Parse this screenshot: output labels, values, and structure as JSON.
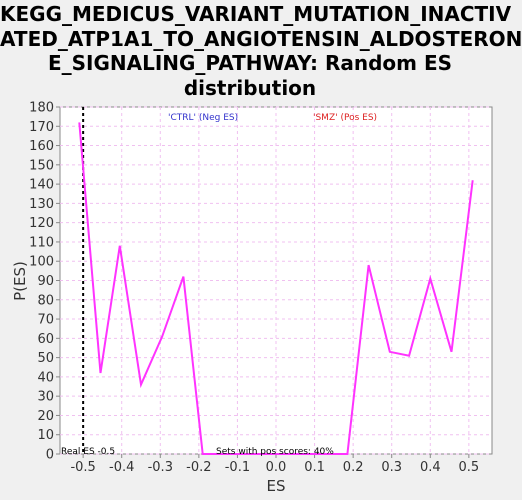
{
  "chart_data": {
    "type": "line",
    "title_lines": [
      "KEGG_MEDICUS_VARIANT_MUTATION_INACTIV",
      "ATED_ATP1A1_TO_ANGIOTENSIN_ALDOSTERON",
      "E_SIGNALING_PATHWAY: Random ES",
      "distribution"
    ],
    "xlabel": "ES",
    "ylabel": "P(ES)",
    "xlim": [
      -0.56,
      0.56
    ],
    "ylim": [
      0,
      180
    ],
    "x_ticks": [
      "-0.5",
      "-0.4",
      "-0.3",
      "-0.2",
      "-0.1",
      "0.0",
      "0.1",
      "0.2",
      "0.3",
      "0.4",
      "0.5"
    ],
    "y_ticks": [
      "0",
      "10",
      "20",
      "30",
      "40",
      "50",
      "60",
      "70",
      "80",
      "90",
      "100",
      "110",
      "120",
      "130",
      "140",
      "150",
      "160",
      "170",
      "180"
    ],
    "legend": {
      "neg": "'CTRL' (Neg ES)",
      "pos": "'SMZ' (Pos ES)"
    },
    "annotations": {
      "real_es": "Real ES -0.5",
      "sets_pos": "Sets with pos scores: 40%"
    },
    "real_es_value": -0.5,
    "series": [
      {
        "color": "#ff33ff",
        "x": [
          -0.51,
          -0.455,
          -0.405,
          -0.35,
          -0.295,
          -0.24,
          -0.19,
          0.0,
          0.185,
          0.24,
          0.295,
          0.345,
          0.4,
          0.455,
          0.51
        ],
        "y": [
          172,
          42,
          108,
          36,
          61,
          92,
          0,
          0,
          0,
          98,
          53,
          51,
          91,
          53,
          142
        ]
      }
    ],
    "colors": {
      "neg_legend": "#3333cc",
      "pos_legend": "#dd2222",
      "line": "#ff33ff",
      "grid": "#f0c0f0"
    }
  }
}
